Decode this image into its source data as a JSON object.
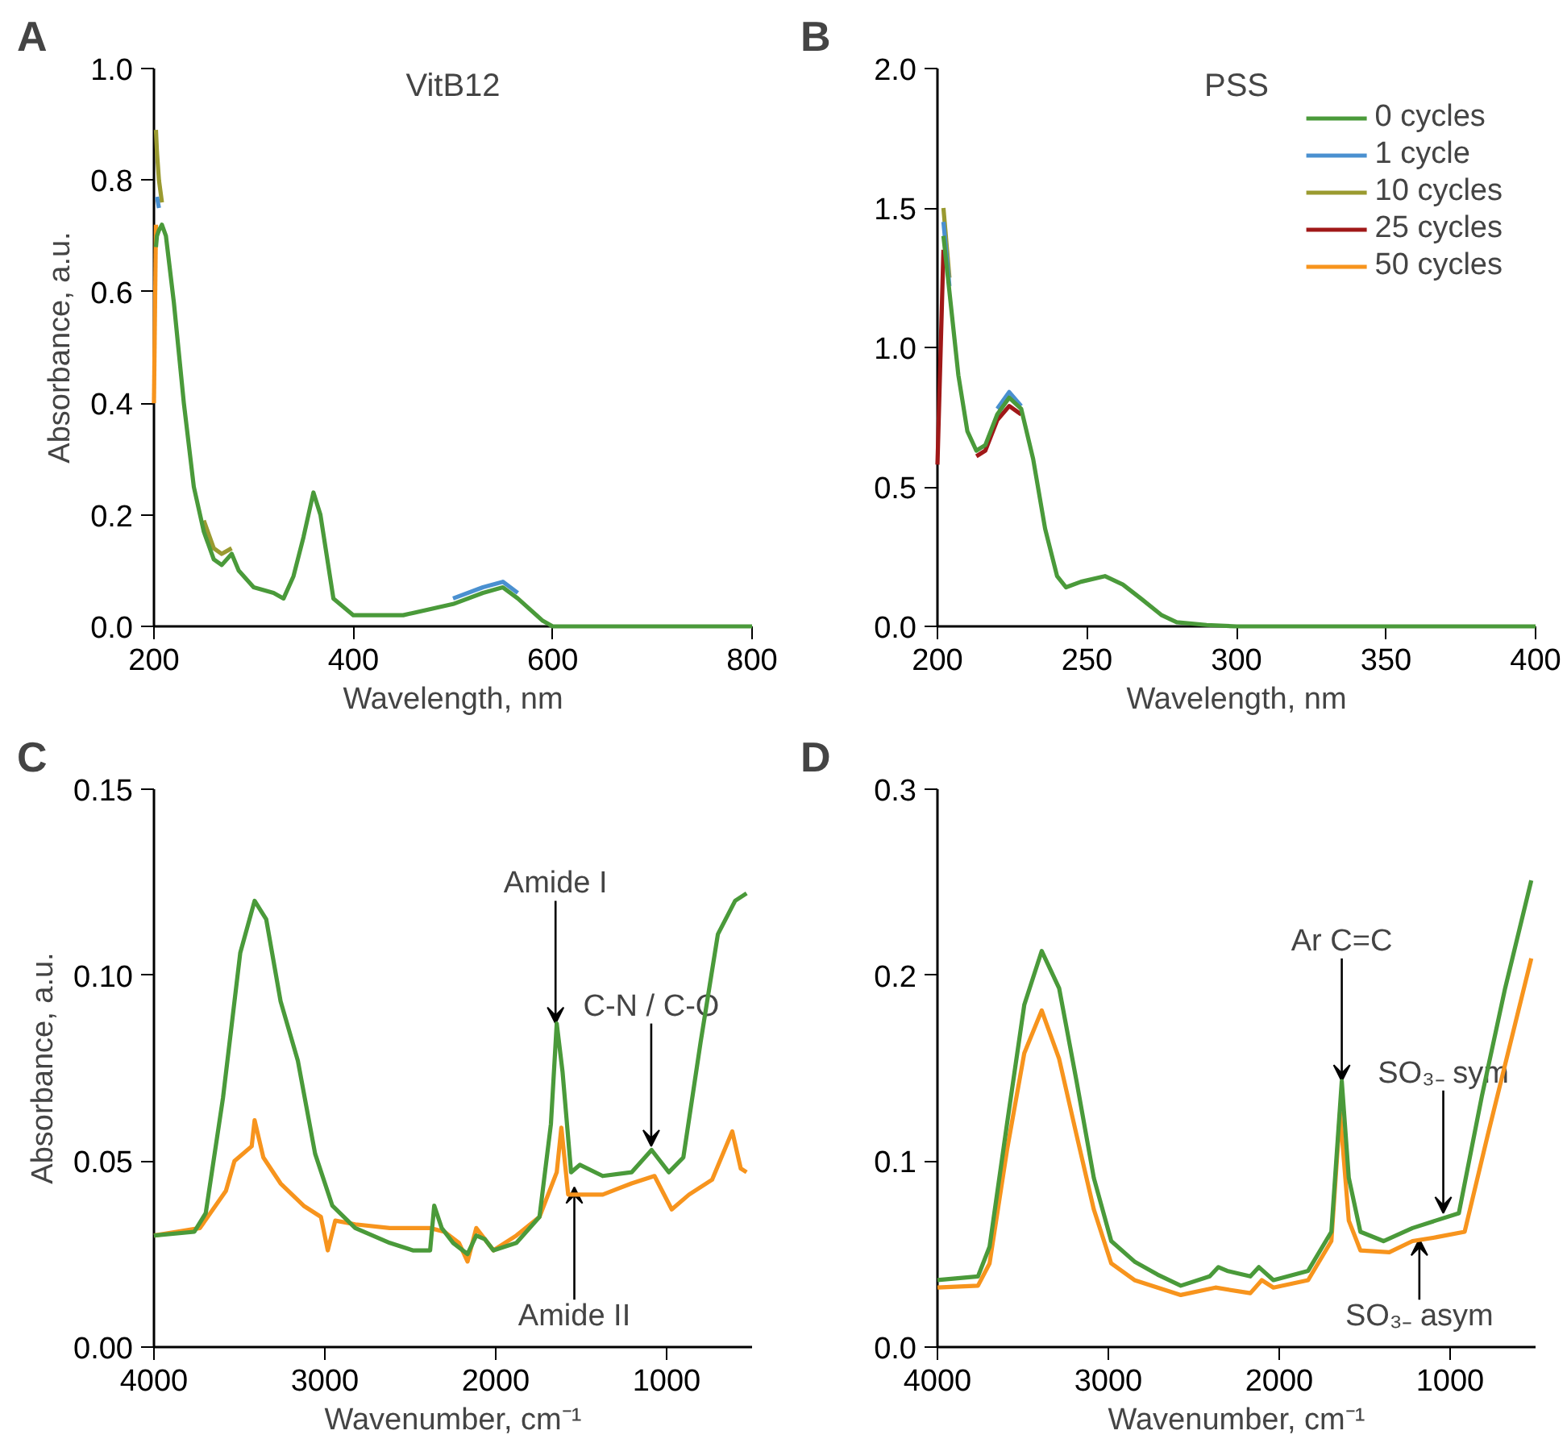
{
  "chart_data": [
    {
      "type": "line",
      "title": "VitB12",
      "xlabel": "Wavelength, nm",
      "ylabel": "Absorbance, a.u.",
      "annotations": [
        "A"
      ],
      "xlim": [
        200,
        800
      ],
      "ylim": [
        0,
        1.0
      ],
      "xticks": [
        200,
        400,
        600,
        800
      ],
      "yticks": [
        {
          "value": 0,
          "label": "0.0"
        },
        {
          "value": 0.2,
          "label": "0.2"
        },
        {
          "value": 0.4,
          "label": "0.4"
        },
        {
          "value": 0.6,
          "label": "0.6"
        },
        {
          "value": 0.8,
          "label": "0.8"
        },
        {
          "value": 1.0,
          "label": "1.0"
        }
      ],
      "x": [
        200,
        202,
        203,
        205,
        208,
        212,
        220,
        230,
        240,
        250,
        260,
        268,
        278,
        285,
        300,
        320,
        330,
        340,
        350,
        360,
        367,
        380,
        400,
        450,
        500,
        530,
        550,
        565,
        590,
        600,
        700,
        800
      ],
      "series": [
        {
          "color": "#f7941d",
          "values": [
            0.4,
            0.72,
            null,
            null,
            null,
            null,
            null,
            null,
            null,
            null,
            null,
            null,
            null,
            null,
            null,
            null,
            null,
            null,
            null,
            null,
            null,
            null,
            null,
            null,
            null,
            null,
            null,
            null,
            null,
            null,
            null,
            null
          ]
        },
        {
          "color": "#a01818",
          "values": [
            null,
            null,
            null,
            null,
            null,
            null,
            null,
            null,
            null,
            null,
            null,
            null,
            null,
            null,
            null,
            null,
            null,
            null,
            null,
            null,
            null,
            null,
            null,
            null,
            null,
            null,
            null,
            null,
            null,
            null,
            null,
            null
          ]
        },
        {
          "color": "#9a9a30",
          "values": [
            null,
            0.89,
            0.85,
            0.8,
            0.76,
            null,
            null,
            null,
            null,
            0.19,
            0.14,
            0.13,
            0.14,
            null,
            null,
            null,
            null,
            null,
            null,
            null,
            null,
            null,
            null,
            null,
            null,
            null,
            null,
            null,
            null,
            null,
            null,
            null
          ]
        },
        {
          "color": "#4a90d0",
          "values": [
            null,
            null,
            0.77,
            0.75,
            null,
            null,
            null,
            null,
            null,
            null,
            null,
            null,
            null,
            null,
            null,
            null,
            null,
            null,
            null,
            null,
            null,
            null,
            null,
            null,
            0.05,
            0.07,
            0.08,
            0.06,
            null,
            null,
            null,
            null
          ]
        },
        {
          "color": "#4a9a3a",
          "values": [
            null,
            0.68,
            0.7,
            0.71,
            0.72,
            0.7,
            0.58,
            0.4,
            0.25,
            0.17,
            0.12,
            0.11,
            0.13,
            0.1,
            0.07,
            0.06,
            0.05,
            0.09,
            0.16,
            0.24,
            0.2,
            0.05,
            0.02,
            0.02,
            0.04,
            0.06,
            0.07,
            0.05,
            0.01,
            0.0,
            0.0,
            0.0
          ]
        }
      ]
    },
    {
      "type": "line",
      "title": "PSS",
      "xlabel": "Wavelength, nm",
      "annotations": [
        "B"
      ],
      "legend": "top right",
      "xlim": [
        200,
        400
      ],
      "ylim": [
        0,
        2.0
      ],
      "xticks": [
        200,
        250,
        300,
        350,
        400
      ],
      "yticks": [
        {
          "value": 0,
          "label": "0.0"
        },
        {
          "value": 0.5,
          "label": "0.5"
        },
        {
          "value": 1.0,
          "label": "1.0"
        },
        {
          "value": 1.5,
          "label": "1.5"
        },
        {
          "value": 2.0,
          "label": "2.0"
        }
      ],
      "x": [
        200,
        202,
        204,
        207,
        210,
        213,
        216,
        220,
        224,
        228,
        232,
        236,
        240,
        243,
        248,
        256,
        262,
        268,
        275,
        280,
        290,
        300,
        350,
        400
      ],
      "series": [
        {
          "name": "50 cycles",
          "color": "#f7941d",
          "values": [
            null,
            null,
            null,
            null,
            null,
            null,
            null,
            null,
            null,
            null,
            null,
            null,
            null,
            null,
            null,
            null,
            null,
            null,
            null,
            null,
            null,
            null,
            null,
            null
          ]
        },
        {
          "name": "25 cycles",
          "color": "#a01818",
          "values": [
            0.58,
            1.35,
            null,
            null,
            null,
            0.61,
            0.63,
            0.74,
            0.79,
            0.76,
            null,
            null,
            null,
            null,
            null,
            null,
            null,
            null,
            null,
            null,
            null,
            null,
            null,
            null
          ]
        },
        {
          "name": "10 cycles",
          "color": "#9a9a30",
          "values": [
            null,
            1.5,
            1.25,
            null,
            null,
            null,
            null,
            null,
            null,
            null,
            null,
            null,
            null,
            null,
            null,
            null,
            null,
            null,
            null,
            null,
            null,
            null,
            null,
            null
          ]
        },
        {
          "name": "1 cycle",
          "color": "#4a90d0",
          "values": [
            null,
            1.45,
            1.22,
            null,
            null,
            null,
            null,
            0.78,
            0.84,
            0.79,
            null,
            null,
            null,
            null,
            null,
            null,
            null,
            null,
            null,
            null,
            null,
            null,
            null,
            null
          ]
        },
        {
          "name": "0 cycles",
          "color": "#4a9a3a",
          "values": [
            null,
            1.4,
            1.2,
            0.9,
            0.7,
            0.63,
            0.65,
            0.76,
            0.82,
            0.78,
            0.6,
            0.35,
            0.18,
            0.14,
            0.16,
            0.18,
            0.15,
            0.1,
            0.04,
            0.015,
            0.005,
            0,
            0,
            0
          ]
        }
      ]
    },
    {
      "type": "line",
      "xlabel": "Wavenumber, cm⁻¹",
      "ylabel": "Absorbance, a.u.",
      "annotations": [
        "C",
        {
          "text": "Amide I",
          "x": 1650,
          "y": 0.087
        },
        {
          "text": "C-N / C-O",
          "x": 1090,
          "y": 0.054
        },
        {
          "text": "Amide II",
          "x": 1540,
          "y": 0.043
        }
      ],
      "xlim": [
        4000,
        500
      ],
      "ylim": [
        0,
        0.15
      ],
      "xticks": [
        4000,
        3000,
        2000,
        1000
      ],
      "yticks": [
        {
          "value": 0,
          "label": "0.00"
        },
        {
          "value": 0.05,
          "label": "0.05"
        },
        {
          "value": 0.1,
          "label": "0.10"
        },
        {
          "value": 0.15,
          "label": "0.15"
        }
      ],
      "series": [
        {
          "color": "#f7941d",
          "x": [
            4000,
            3731,
            3579,
            3529,
            3428,
            3411,
            3360,
            3259,
            3124,
            3023,
            2983,
            2939,
            2822,
            2620,
            2384,
            2300,
            2215,
            2165,
            2114,
            2013,
            1879,
            1744,
            1643,
            1616,
            1576,
            1374,
            1205,
            1071,
            970,
            869,
            734,
            616,
            566,
            532
          ],
          "values": [
            0.03,
            0.032,
            0.042,
            0.05,
            0.054,
            0.061,
            0.051,
            0.044,
            0.038,
            0.035,
            0.026,
            0.034,
            0.033,
            0.032,
            0.032,
            0.031,
            0.028,
            0.023,
            0.032,
            0.026,
            0.03,
            0.035,
            0.047,
            0.059,
            0.041,
            0.041,
            0.044,
            0.046,
            0.037,
            0.041,
            0.045,
            0.058,
            0.048,
            0.047
          ]
        },
        {
          "color": "#4a9a3a",
          "x": [
            4000,
            3764,
            3697,
            3596,
            3495,
            3411,
            3343,
            3259,
            3158,
            3057,
            2956,
            2822,
            2620,
            2485,
            2384,
            2360,
            2316,
            2249,
            2165,
            2114,
            2064,
            2013,
            1879,
            1744,
            1677,
            1643,
            1609,
            1559,
            1508,
            1374,
            1205,
            1088,
            987,
            902,
            801,
            700,
            599,
            532
          ],
          "values": [
            0.03,
            0.031,
            0.036,
            0.067,
            0.106,
            0.12,
            0.115,
            0.093,
            0.077,
            0.052,
            0.038,
            0.032,
            0.028,
            0.026,
            0.026,
            0.038,
            0.032,
            0.028,
            0.025,
            0.03,
            0.029,
            0.026,
            0.028,
            0.035,
            0.06,
            0.087,
            0.074,
            0.047,
            0.049,
            0.046,
            0.047,
            0.053,
            0.047,
            0.051,
            0.082,
            0.111,
            0.12,
            0.122
          ]
        }
      ]
    },
    {
      "type": "line",
      "xlabel": "Wavenumber, cm⁻¹",
      "annotations": [
        "D",
        {
          "text": "Ar C=C",
          "x": 1634,
          "y": 0.143
        },
        {
          "text": "SO₃₋ sym",
          "x": 1040,
          "y": 0.072
        },
        {
          "text": "SO₃₋ asym",
          "x": 1180,
          "y": 0.058
        }
      ],
      "xlim": [
        4000,
        500
      ],
      "ylim": [
        0,
        0.3
      ],
      "xticks": [
        4000,
        3000,
        2000,
        1000
      ],
      "yticks": [
        {
          "value": 0,
          "label": "0.0"
        },
        {
          "value": 0.1,
          "label": "0.1"
        },
        {
          "value": 0.2,
          "label": "0.2"
        },
        {
          "value": 0.3,
          "label": "0.3"
        }
      ],
      "series": [
        {
          "color": "#f7941d",
          "x": [
            4000,
            3763,
            3695,
            3593,
            3492,
            3390,
            3288,
            3186,
            3085,
            2983,
            2847,
            2576,
            2373,
            2169,
            2102,
            2034,
            1831,
            1695,
            1644,
            1593,
            1525,
            1356,
            1220,
            1085,
            915,
            780,
            525
          ],
          "values": [
            0.032,
            0.033,
            0.045,
            0.106,
            0.158,
            0.181,
            0.155,
            0.114,
            0.074,
            0.045,
            0.036,
            0.028,
            0.032,
            0.029,
            0.036,
            0.032,
            0.036,
            0.057,
            0.126,
            0.068,
            0.052,
            0.051,
            0.057,
            0.059,
            0.062,
            0.114,
            0.209
          ]
        },
        {
          "color": "#4a9a3a",
          "x": [
            4000,
            3763,
            3695,
            3593,
            3492,
            3390,
            3288,
            3186,
            3085,
            2983,
            2847,
            2712,
            2576,
            2407,
            2356,
            2305,
            2169,
            2119,
            2034,
            1831,
            1695,
            1634,
            1593,
            1525,
            1390,
            1220,
            1085,
            949,
            814,
            678,
            525
          ],
          "values": [
            0.036,
            0.038,
            0.054,
            0.12,
            0.184,
            0.213,
            0.193,
            0.143,
            0.091,
            0.057,
            0.046,
            0.039,
            0.033,
            0.038,
            0.043,
            0.041,
            0.038,
            0.043,
            0.036,
            0.041,
            0.062,
            0.143,
            0.091,
            0.062,
            0.057,
            0.064,
            0.068,
            0.072,
            0.135,
            0.193,
            0.251
          ]
        }
      ]
    }
  ]
}
